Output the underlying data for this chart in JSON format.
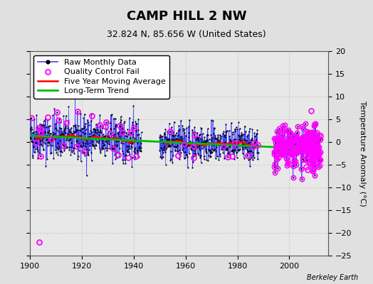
{
  "title": "CAMP HILL 2 NW",
  "subtitle": "32.824 N, 85.656 W (United States)",
  "ylabel_right": "Temperature Anomaly (°C)",
  "watermark": "Berkeley Earth",
  "xlim": [
    1900,
    2015
  ],
  "ylim": [
    -25,
    20
  ],
  "yticks": [
    -25,
    -20,
    -15,
    -10,
    -5,
    0,
    5,
    10,
    15,
    20
  ],
  "xticks": [
    1900,
    1920,
    1940,
    1960,
    1980,
    2000
  ],
  "bg_color": "#e0e0e0",
  "plot_bg_color": "#e8e8e8",
  "grid_color": "#cccccc",
  "raw_color": "#4444ff",
  "dot_color": "#000000",
  "qc_color": "#ff00ff",
  "ma_color": "#ff0000",
  "trend_color": "#00bb00",
  "legend_labels": [
    "Raw Monthly Data",
    "Quality Control Fail",
    "Five Year Moving Average",
    "Long-Term Trend"
  ],
  "seg1_start": 1900,
  "seg1_end": 1943,
  "seg2_start": 1950,
  "seg2_end": 1988,
  "seg3_start": 1994,
  "seg3_end": 2012,
  "trend_x": [
    1900,
    2012
  ],
  "trend_y": [
    1.4,
    -1.6
  ],
  "noise_seed": 42,
  "noise_scale1": 2.5,
  "noise_scale2": 2.0,
  "noise_scale3": 2.3,
  "qc_early": [
    [
      1903.5,
      -22
    ],
    [
      1907,
      5.5
    ],
    [
      1911,
      4.8
    ],
    [
      1914,
      4.2
    ],
    [
      1921,
      -2.0
    ],
    [
      1924,
      5.8
    ],
    [
      1927,
      3.8
    ],
    [
      1929,
      3.5
    ],
    [
      1934,
      -2.8
    ],
    [
      1938,
      -3.5
    ],
    [
      1941,
      -3.2
    ],
    [
      1957,
      -3.0
    ],
    [
      1963,
      -3.5
    ],
    [
      1978,
      -3.2
    ],
    [
      1984,
      -3.0
    ]
  ],
  "qc_late_seed": 77,
  "qc_late_n": 45,
  "qc_late_x_start": 2006,
  "qc_late_x_end": 2012,
  "qc_late_y_mean": -0.5,
  "qc_late_y_std": 2.8,
  "title_fontsize": 13,
  "subtitle_fontsize": 9,
  "tick_fontsize": 8,
  "legend_fontsize": 8
}
